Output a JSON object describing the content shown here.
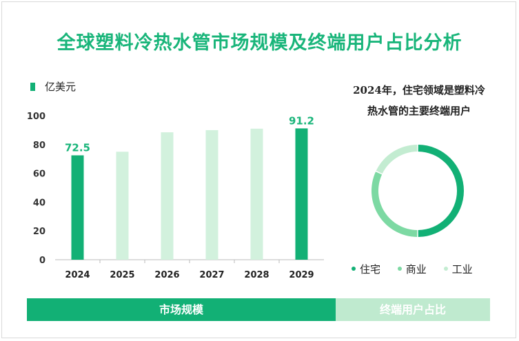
{
  "title": "全球塑料冷热水管市场规模及终端用户占比分析",
  "colors": {
    "accent": "#12b075",
    "light_bar": "#d2f1dd",
    "donut_dark": "#12b075",
    "donut_mid": "#7dd9a3",
    "donut_light": "#c3ecd1",
    "label_green": "#19b57a"
  },
  "chart_data": [
    {
      "type": "bar",
      "legend": "亿美元",
      "categories": [
        "2024",
        "2025",
        "2026",
        "2027",
        "2028",
        "2029"
      ],
      "values": [
        72.5,
        75,
        88.5,
        90,
        91,
        91.2
      ],
      "highlighted": [
        true,
        false,
        false,
        false,
        false,
        true
      ],
      "data_labels": [
        "72.5",
        "",
        "",
        "",
        "",
        "91.2"
      ],
      "y_ticks": [
        "0",
        "20",
        "40",
        "60",
        "80",
        "100"
      ],
      "ylim": [
        0,
        100
      ]
    },
    {
      "type": "pie",
      "title_line1": "2024年，住宅领域是塑料冷",
      "title_line2": "热水管的主要终端用户",
      "labels": [
        "住宅",
        "商业",
        "工业"
      ],
      "values": [
        50,
        32,
        18
      ],
      "legend": "bottom"
    }
  ],
  "footer": {
    "left": "市场规模",
    "right": "终端用户占比"
  }
}
